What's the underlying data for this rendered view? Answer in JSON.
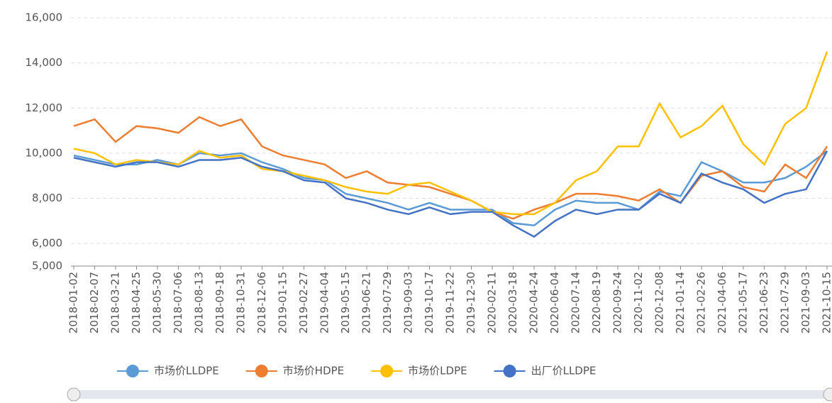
{
  "chart_data": {
    "type": "line",
    "categories": [
      "2018-01-02",
      "2018-02-07",
      "2018-03-21",
      "2018-04-25",
      "2018-05-30",
      "2018-07-06",
      "2018-08-13",
      "2018-09-18",
      "2018-10-31",
      "2018-12-06",
      "2019-01-15",
      "2019-02-27",
      "2019-04-04",
      "2019-05-15",
      "2019-06-21",
      "2019-07-29",
      "2019-09-03",
      "2019-10-17",
      "2019-11-22",
      "2019-12-30",
      "2020-02-11",
      "2020-03-18",
      "2020-04-24",
      "2020-06-04",
      "2020-07-14",
      "2020-08-19",
      "2020-09-24",
      "2020-11-02",
      "2020-12-08",
      "2021-01-14",
      "2021-02-26",
      "2021-04-06",
      "2021-05-17",
      "2021-06-23",
      "2021-07-29",
      "2021-09-03",
      "2021-10-15"
    ],
    "series": [
      {
        "name": "市场价LLDPE",
        "color": "#5b9bd5",
        "values": [
          9900,
          9700,
          9500,
          9500,
          9700,
          9500,
          10000,
          9900,
          10000,
          9600,
          9300,
          8900,
          8800,
          8200,
          8000,
          7800,
          7500,
          7800,
          7500,
          7500,
          7500,
          6900,
          6800,
          7500,
          7900,
          7800,
          7800,
          7500,
          8300,
          8100,
          9600,
          9200,
          8700,
          8700,
          8900,
          9400,
          10100
        ]
      },
      {
        "name": "市场价HDPE",
        "color": "#ed7d31",
        "values": [
          11200,
          11500,
          10500,
          11200,
          11100,
          10900,
          11600,
          11200,
          11500,
          10300,
          9900,
          9700,
          9500,
          8900,
          9200,
          8700,
          8600,
          8500,
          8200,
          7900,
          7400,
          7100,
          7500,
          7800,
          8200,
          8200,
          8100,
          7900,
          8400,
          7800,
          9000,
          9200,
          8500,
          8300,
          9500,
          8900,
          10300
        ]
      },
      {
        "name": "市场价LDPE",
        "color": "#ffc000",
        "values": [
          10200,
          10000,
          9500,
          9700,
          9600,
          9500,
          10100,
          9800,
          9900,
          9300,
          9200,
          9000,
          8800,
          8500,
          8300,
          8200,
          8600,
          8700,
          8300,
          7900,
          7400,
          7300,
          7300,
          7800,
          8800,
          9200,
          10300,
          10300,
          12200,
          10700,
          11200,
          12100,
          10400,
          9500,
          11300,
          12000,
          14500
        ]
      },
      {
        "name": "出厂价LLDPE",
        "color": "#4472c4",
        "values": [
          9800,
          9600,
          9400,
          9600,
          9600,
          9400,
          9700,
          9700,
          9800,
          9400,
          9200,
          8800,
          8700,
          8000,
          7800,
          7500,
          7300,
          7600,
          7300,
          7400,
          7400,
          6800,
          6300,
          7000,
          7500,
          7300,
          7500,
          7500,
          8200,
          7800,
          9100,
          8700,
          8400,
          7800,
          8200,
          8400,
          10100
        ]
      }
    ],
    "ylim": [
      5000,
      16000
    ],
    "yticks": [
      {
        "value": 5000,
        "label": "5,000"
      },
      {
        "value": 6000,
        "label": "6,000"
      },
      {
        "value": 8000,
        "label": "8,000"
      },
      {
        "value": 10000,
        "label": "10,000"
      },
      {
        "value": 12000,
        "label": "12,000"
      },
      {
        "value": 14000,
        "label": "14,000"
      },
      {
        "value": 16000,
        "label": "16,000"
      }
    ],
    "grid": true
  }
}
